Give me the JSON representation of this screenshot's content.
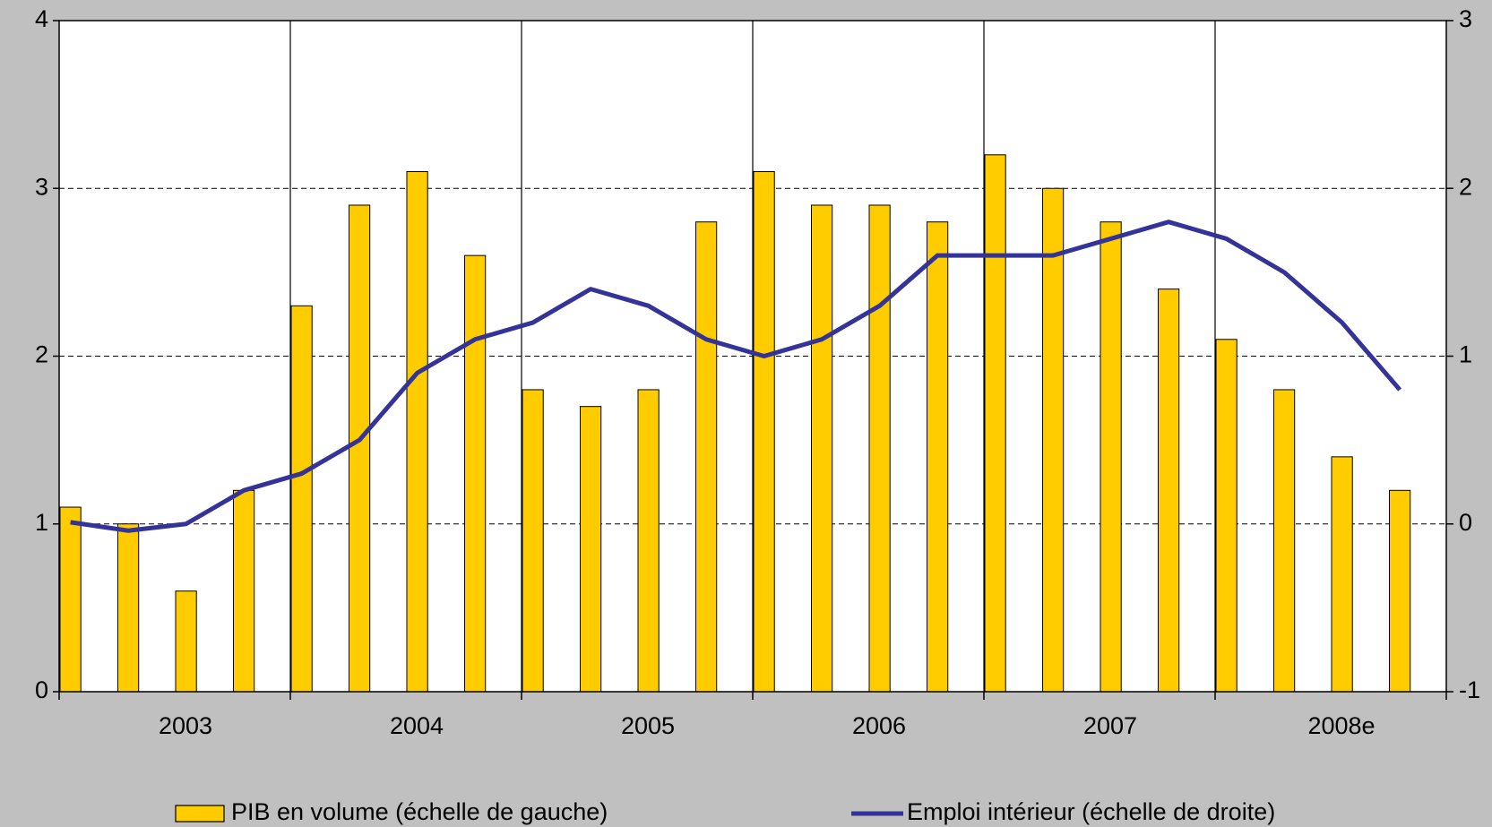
{
  "chart_data": {
    "type": "bar-line",
    "groups": [
      "2003",
      "2004",
      "2005",
      "2006",
      "2007",
      "2008e"
    ],
    "group_size": 4,
    "series": [
      {
        "name": "PIB en volume (échelle de gauche)",
        "type": "bar",
        "color": "#ffcc00",
        "values": [
          1.1,
          1.0,
          0.6,
          1.2,
          2.3,
          2.9,
          3.1,
          2.6,
          1.8,
          1.7,
          1.8,
          2.8,
          3.1,
          2.9,
          2.9,
          2.8,
          3.2,
          3.0,
          2.8,
          2.4,
          2.1,
          1.8,
          1.4,
          1.2
        ]
      },
      {
        "name": "Emploi intérieur (échelle de droite)",
        "type": "line",
        "color": "#333399",
        "axis": "y2",
        "values": [
          0.01,
          -0.04,
          0.0,
          0.2,
          0.3,
          0.5,
          0.9,
          1.1,
          1.2,
          1.4,
          1.3,
          1.1,
          1.0,
          1.1,
          1.3,
          1.6,
          1.6,
          1.6,
          1.7,
          1.8,
          1.7,
          1.5,
          1.2,
          0.8
        ]
      }
    ],
    "ylim": [
      0,
      4
    ],
    "yticks": [
      0,
      1,
      2,
      3,
      4
    ],
    "y2lim": [
      -1,
      3
    ],
    "y2ticks": [
      -1,
      0,
      1,
      2,
      3
    ],
    "grid": true
  }
}
